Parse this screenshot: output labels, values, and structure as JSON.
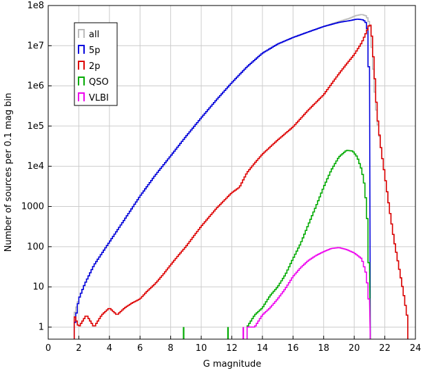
{
  "chart_data": {
    "type": "line",
    "step": true,
    "xlabel": "G magnitude",
    "ylabel": "Number of sources per 0.1 mag bin",
    "xlim": [
      0,
      24
    ],
    "ylim": [
      0.5,
      100000000
    ],
    "yscale": "log",
    "grid": true,
    "legend_position": "top-left",
    "x_ticks": [
      0,
      2,
      4,
      6,
      8,
      10,
      12,
      14,
      16,
      18,
      20,
      22,
      24
    ],
    "y_ticks": [
      {
        "value": 1,
        "label": "1"
      },
      {
        "value": 10,
        "label": "10"
      },
      {
        "value": 100,
        "label": "100"
      },
      {
        "value": 1000,
        "label": "1000"
      },
      {
        "value": 10000,
        "label": "1e4"
      },
      {
        "value": 100000,
        "label": "1e5"
      },
      {
        "value": 1000000,
        "label": "1e6"
      },
      {
        "value": 10000000,
        "label": "1e7"
      },
      {
        "value": 100000000,
        "label": "1e8"
      }
    ],
    "series": [
      {
        "name": "all",
        "color": "#bbbbbb",
        "points": [
          [
            1.7,
            2
          ],
          [
            2,
            5
          ],
          [
            2.4,
            12
          ],
          [
            3,
            35
          ],
          [
            4,
            130
          ],
          [
            5,
            480
          ],
          [
            6,
            1800
          ],
          [
            7,
            6000
          ],
          [
            8,
            18000
          ],
          [
            9,
            55000
          ],
          [
            10,
            160000
          ],
          [
            11,
            450000
          ],
          [
            12,
            1200000
          ],
          [
            13,
            3000000
          ],
          [
            14,
            6500000
          ],
          [
            15,
            11000000
          ],
          [
            16,
            16000000
          ],
          [
            17,
            22000000
          ],
          [
            18,
            30000000
          ],
          [
            19,
            40000000
          ],
          [
            19.7,
            48000000
          ],
          [
            20.1,
            56000000
          ],
          [
            20.5,
            60000000
          ],
          [
            20.8,
            55000000
          ],
          [
            20.95,
            40000000
          ],
          [
            21.05,
            30000000
          ],
          [
            21.2,
            5000000
          ],
          [
            21.35,
            700000
          ],
          [
            21.5,
            150000
          ],
          [
            21.7,
            40000
          ],
          [
            22,
            6000
          ],
          [
            22.3,
            900
          ],
          [
            22.6,
            150
          ],
          [
            22.9,
            35
          ],
          [
            23.2,
            8
          ],
          [
            23.5,
            1.5
          ]
        ]
      },
      {
        "name": "5p",
        "color": "#0000dd",
        "points": [
          [
            1.7,
            1
          ],
          [
            2,
            5
          ],
          [
            2.4,
            12
          ],
          [
            3,
            35
          ],
          [
            4,
            130
          ],
          [
            5,
            480
          ],
          [
            6,
            1800
          ],
          [
            7,
            6000
          ],
          [
            8,
            18000
          ],
          [
            9,
            55000
          ],
          [
            10,
            160000
          ],
          [
            11,
            450000
          ],
          [
            12,
            1200000
          ],
          [
            13,
            3000000
          ],
          [
            14,
            6500000
          ],
          [
            15,
            11000000
          ],
          [
            16,
            16000000
          ],
          [
            17,
            22000000
          ],
          [
            18,
            30000000
          ],
          [
            19,
            38000000
          ],
          [
            19.7,
            42000000
          ],
          [
            20.2,
            46000000
          ],
          [
            20.6,
            44000000
          ],
          [
            20.8,
            36000000
          ],
          [
            20.9,
            20000000
          ],
          [
            20.95,
            3000000
          ],
          [
            21.0,
            50000
          ],
          [
            21.05,
            0.3
          ]
        ]
      },
      {
        "name": "2p",
        "color": "#dd0000",
        "points": [
          [
            1.7,
            2
          ],
          [
            2,
            1
          ],
          [
            2.5,
            2
          ],
          [
            3,
            1
          ],
          [
            3.5,
            2
          ],
          [
            4,
            3
          ],
          [
            4.5,
            2
          ],
          [
            5,
            3
          ],
          [
            5.5,
            4
          ],
          [
            6,
            5
          ],
          [
            6.5,
            8
          ],
          [
            7,
            12
          ],
          [
            7.5,
            20
          ],
          [
            8,
            35
          ],
          [
            8.5,
            60
          ],
          [
            9,
            100
          ],
          [
            9.5,
            180
          ],
          [
            10,
            320
          ],
          [
            11,
            900
          ],
          [
            12,
            2200
          ],
          [
            12.5,
            3000
          ],
          [
            13,
            7000
          ],
          [
            13.5,
            12000
          ],
          [
            14,
            20000
          ],
          [
            15,
            45000
          ],
          [
            16,
            95000
          ],
          [
            17,
            250000
          ],
          [
            18,
            600000
          ],
          [
            19,
            2000000
          ],
          [
            19.5,
            3500000
          ],
          [
            20,
            6000000
          ],
          [
            20.5,
            12000000
          ],
          [
            20.8,
            22000000
          ],
          [
            21.0,
            35000000
          ],
          [
            21.1,
            30000000
          ],
          [
            21.2,
            10000000
          ],
          [
            21.35,
            1500000
          ],
          [
            21.5,
            200000
          ],
          [
            21.7,
            40000
          ],
          [
            22,
            6000
          ],
          [
            22.3,
            900
          ],
          [
            22.6,
            150
          ],
          [
            22.9,
            35
          ],
          [
            23.2,
            8
          ],
          [
            23.5,
            1.5
          ]
        ]
      },
      {
        "name": "QSO",
        "color": "#00aa00",
        "points": [
          [
            13,
            1
          ],
          [
            13.5,
            2
          ],
          [
            14,
            3
          ],
          [
            14.5,
            6
          ],
          [
            15,
            10
          ],
          [
            15.5,
            20
          ],
          [
            16,
            50
          ],
          [
            16.5,
            120
          ],
          [
            17,
            350
          ],
          [
            17.5,
            1000
          ],
          [
            18,
            3000
          ],
          [
            18.5,
            8000
          ],
          [
            19,
            17000
          ],
          [
            19.5,
            25000
          ],
          [
            19.9,
            24000
          ],
          [
            20.2,
            17000
          ],
          [
            20.5,
            8000
          ],
          [
            20.7,
            3000
          ],
          [
            20.85,
            500
          ],
          [
            20.95,
            40
          ],
          [
            21.0,
            2
          ],
          [
            21.05,
            0.3
          ]
        ]
      },
      {
        "name": "VLBI",
        "color": "#ee00ee",
        "points": [
          [
            13,
            1
          ],
          [
            13.5,
            1
          ],
          [
            14,
            2
          ],
          [
            14.5,
            3
          ],
          [
            15,
            5
          ],
          [
            15.5,
            9
          ],
          [
            16,
            18
          ],
          [
            16.5,
            30
          ],
          [
            17,
            45
          ],
          [
            17.5,
            60
          ],
          [
            18,
            75
          ],
          [
            18.5,
            90
          ],
          [
            19,
            95
          ],
          [
            19.5,
            85
          ],
          [
            20,
            70
          ],
          [
            20.5,
            50
          ],
          [
            20.8,
            20
          ],
          [
            20.95,
            5
          ],
          [
            21.0,
            1
          ],
          [
            21.05,
            0.3
          ]
        ]
      }
    ],
    "extra_marks": [
      {
        "series": "QSO",
        "x": 8.8,
        "y": 1
      },
      {
        "series": "QSO",
        "x": 11.7,
        "y": 1
      },
      {
        "series": "VLBI",
        "x": 12.7,
        "y": 1
      }
    ]
  }
}
